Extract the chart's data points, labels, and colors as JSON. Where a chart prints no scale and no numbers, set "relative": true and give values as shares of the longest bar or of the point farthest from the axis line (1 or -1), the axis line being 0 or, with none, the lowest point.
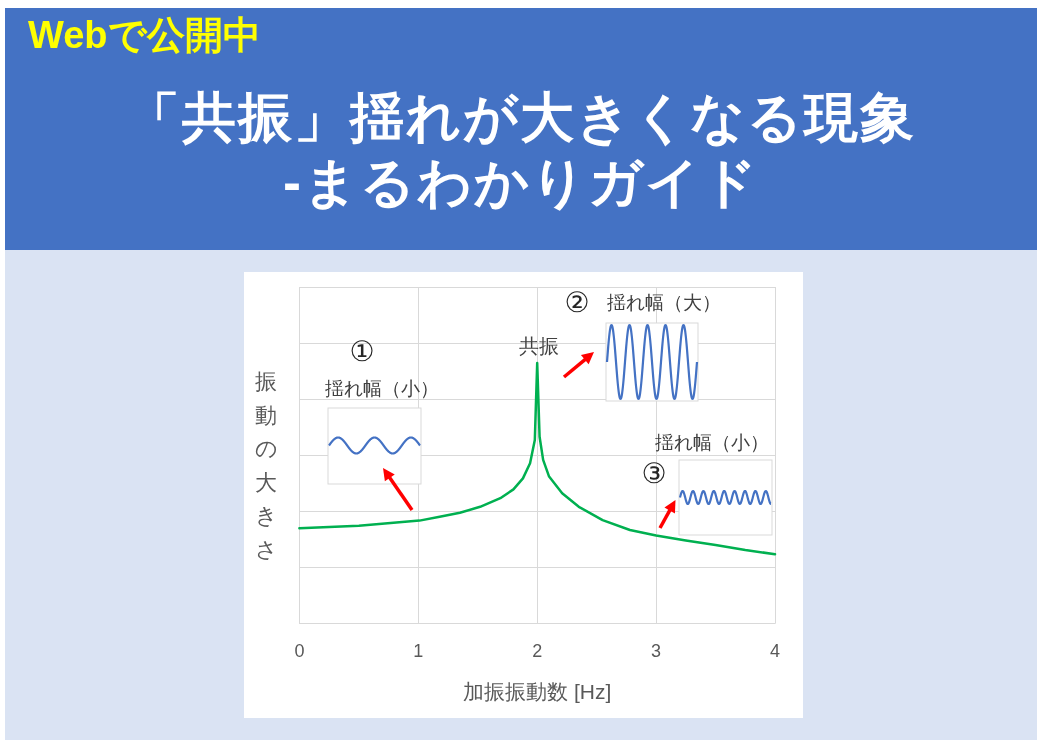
{
  "chart_data": {
    "type": "line",
    "title": "「共振」揺れが大きくなる現象\n-まるわかりガイド",
    "subtitle": "Webで公開中",
    "xlabel": "加振振動数 [Hz]",
    "ylabel": "振動の大きさ",
    "relative": true,
    "grid": true,
    "x": [
      0,
      0.5,
      1.01,
      1.18,
      1.35,
      1.52,
      1.69,
      1.8,
      1.88,
      1.94,
      1.98,
      2,
      2.02,
      2.05,
      2.1,
      2.21,
      2.35,
      2.55,
      2.78,
      3,
      3.25,
      3.5,
      3.75,
      4
    ],
    "series": [
      {
        "color": "#00b050",
        "values": [
          0.366,
          0.375,
          0.395,
          0.41,
          0.425,
          0.448,
          0.481,
          0.515,
          0.557,
          0.615,
          0.704,
          1,
          0.717,
          0.628,
          0.564,
          0.5,
          0.448,
          0.397,
          0.359,
          0.338,
          0.319,
          0.301,
          0.282,
          0.266
        ]
      }
    ],
    "xlim": [
      0,
      4
    ],
    "xticks": [
      0,
      1,
      2,
      3,
      4
    ],
    "annotations": [
      "①",
      "揺れ幅（小）",
      {
        "text": "共振",
        "x": 2,
        "y": 1
      },
      "②",
      "揺れ幅（大）",
      "揺れ幅（小）",
      "③"
    ]
  }
}
